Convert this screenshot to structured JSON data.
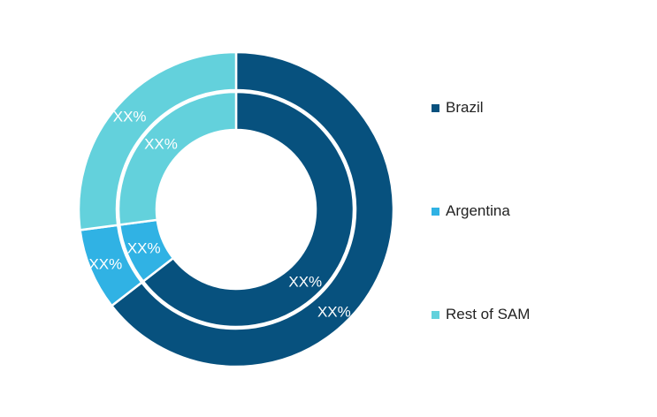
{
  "chart_data": {
    "type": "pie",
    "title": "",
    "categories": [
      "Brazil",
      "Argentina",
      "Rest of SAM"
    ],
    "series": [
      {
        "ring": "inner",
        "values": [
          0.645,
          0.084,
          0.271
        ],
        "labels": [
          "XX%",
          "XX%",
          "XX%"
        ]
      },
      {
        "ring": "outer",
        "values": [
          0.645,
          0.084,
          0.271
        ],
        "labels": [
          "XX%",
          "XX%",
          "XX%"
        ]
      }
    ],
    "colors": [
      "#07517e",
      "#30b2e4",
      "#63d1dc"
    ],
    "legend_position": "right"
  },
  "legend": {
    "items": [
      {
        "label": "Brazil",
        "color": "#07517e"
      },
      {
        "label": "Argentina",
        "color": "#30b2e4"
      },
      {
        "label": "Rest of SAM",
        "color": "#63d1dc"
      }
    ]
  }
}
